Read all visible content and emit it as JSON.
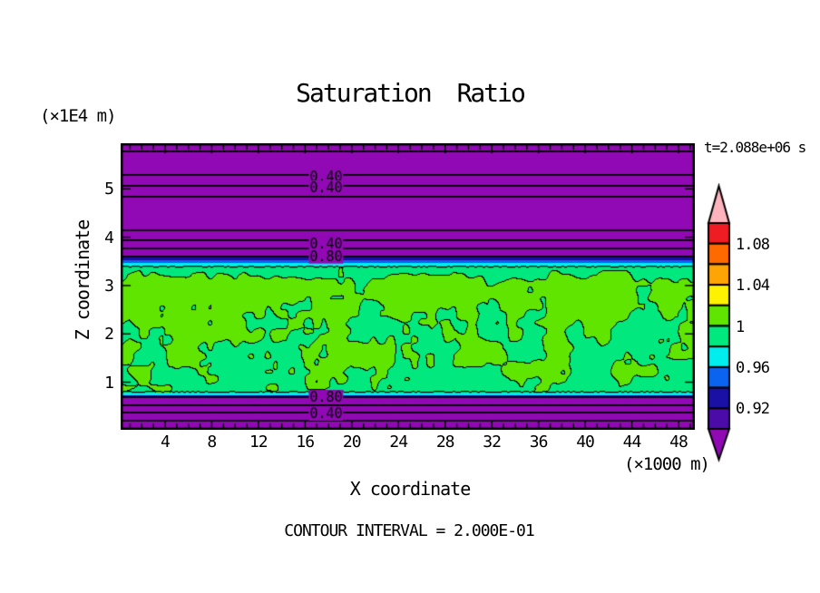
{
  "title": "Saturation Ratio",
  "time_label": "t=2.088e+06 s",
  "footer": "CONTOUR INTERVAL = 2.000E-01",
  "axes": {
    "x": {
      "label": "X coordinate",
      "unit": "(×1000 m)",
      "ticks": [
        4,
        8,
        12,
        16,
        20,
        24,
        28,
        32,
        36,
        40,
        44,
        48
      ],
      "minor_tick_step": 1,
      "range": [
        0.2,
        49.4
      ]
    },
    "z": {
      "label": "Z coordinate",
      "unit": "(×1E4 m)",
      "ticks": [
        1,
        2,
        3,
        4,
        5
      ],
      "range": [
        0.015,
        5.944
      ]
    }
  },
  "chart_data": {
    "type": "heatmap",
    "subtype": "filled-contour",
    "field": "saturation ratio",
    "title": "Saturation Ratio",
    "xlabel": "X coordinate (×1000 m)",
    "ylabel": "Z coordinate (×1E4 m)",
    "time": "t=2.088e+06 s",
    "contour_interval": "2.000E-01",
    "x_range": [
      0.2,
      49.4
    ],
    "z_range": [
      0.015,
      5.944
    ],
    "bands": [
      {
        "name": "upper-subsaturated",
        "color": "#9109B4",
        "value": "<0.90",
        "z_top": 5.944,
        "z_bottom": 3.579
      },
      {
        "name": "upper-gradient-navy",
        "color": "#1A10A6",
        "value": "0.92-0.94",
        "z_top": 3.579,
        "z_bottom": 3.523
      },
      {
        "name": "upper-gradient-blue",
        "color": "#0A64F0",
        "value": "0.94-0.96",
        "z_top": 3.523,
        "z_bottom": 3.467
      },
      {
        "name": "upper-gradient-cyan",
        "color": "#00EEEE",
        "value": "0.96-0.98",
        "z_top": 3.467,
        "z_bottom": 3.411
      },
      {
        "name": "saturated-mottled",
        "colors": [
          "#5FE500",
          "#00E87E"
        ],
        "values": [
          "1.00-1.02",
          "0.98-1.00"
        ],
        "z_top": 3.411,
        "z_bottom": 0.784
      },
      {
        "name": "lower-gradient-cyan",
        "color": "#00EEEE",
        "value": "0.96-0.98",
        "z_top": 0.784,
        "z_bottom": 0.728
      },
      {
        "name": "lower-gradient-navy",
        "color": "#1A10A6",
        "value": "0.92-0.94",
        "z_top": 0.728,
        "z_bottom": 0.69
      },
      {
        "name": "lower-subsaturated",
        "color": "#9109B4",
        "value": "<0.90",
        "z_top": 0.69,
        "z_bottom": 0.015
      }
    ],
    "contour_lines_z": [
      5.775,
      5.287,
      5.062,
      4.837,
      4.143,
      3.936,
      3.767,
      3.598,
      0.69,
      0.522,
      0.371,
      0.203
    ],
    "contour_labels": [
      {
        "text": "0.40",
        "x": 17.8,
        "z": 5.25
      },
      {
        "text": "0.40",
        "x": 17.8,
        "z": 5.025
      },
      {
        "text": "0.40",
        "x": 17.8,
        "z": 3.861
      },
      {
        "text": "0.80",
        "x": 17.8,
        "z": 3.605
      },
      {
        "text": "0.80",
        "x": 17.8,
        "z": 0.69
      },
      {
        "text": "0.40",
        "x": 17.8,
        "z": 0.353
      }
    ],
    "colorbar": {
      "cells": [
        {
          "color": "#EE1C23",
          "range": [
            1.08,
            1.1
          ]
        },
        {
          "color": "#FF6A00",
          "range": [
            1.06,
            1.08
          ]
        },
        {
          "color": "#FFA405",
          "range": [
            1.04,
            1.06
          ]
        },
        {
          "color": "#FFF200",
          "range": [
            1.02,
            1.04
          ]
        },
        {
          "color": "#5FE500",
          "range": [
            1.0,
            1.02
          ]
        },
        {
          "color": "#00E87E",
          "range": [
            0.98,
            1.0
          ]
        },
        {
          "color": "#00EEEE",
          "range": [
            0.96,
            0.98
          ]
        },
        {
          "color": "#0A64F0",
          "range": [
            0.94,
            0.96
          ]
        },
        {
          "color": "#1A10A6",
          "range": [
            0.92,
            0.94
          ]
        },
        {
          "color": "#4B0BA8",
          "range": [
            0.9,
            0.92
          ]
        }
      ],
      "over_arrow_color": "#FFB3BC",
      "under_arrow_color": "#9109B4",
      "labels": [
        {
          "text": "1.08",
          "boundary": 1
        },
        {
          "text": "1.04",
          "boundary": 3
        },
        {
          "text": "1",
          "boundary": 5
        },
        {
          "text": "0.96",
          "boundary": 7
        },
        {
          "text": "0.92",
          "boundary": 9
        }
      ]
    }
  }
}
